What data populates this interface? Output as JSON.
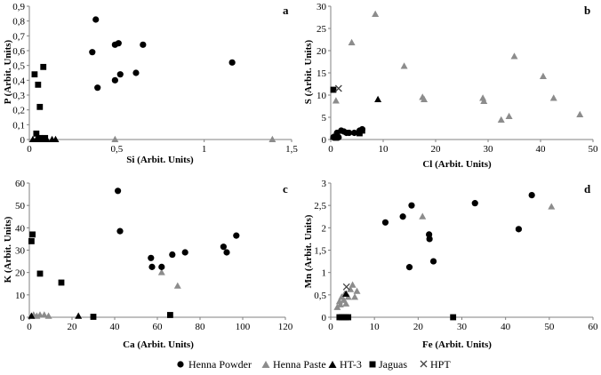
{
  "chart_data": [
    {
      "id": "a",
      "type": "scatter",
      "panel_label": "a",
      "xlabel": "Si (Arbit. Units)",
      "ylabel": "P (Arbit. Units)",
      "xlim": [
        0,
        1.5
      ],
      "ylim": [
        0,
        0.9
      ],
      "xticks": [
        0,
        0.5,
        1,
        1.5
      ],
      "xtick_labels": [
        "0",
        "0,5",
        "1",
        "1,5"
      ],
      "yticks": [
        0,
        0.1,
        0.2,
        0.3,
        0.4,
        0.5,
        0.6,
        0.7,
        0.8,
        0.9
      ],
      "ytick_labels": [
        "0",
        "0,1",
        "0,2",
        "0,3",
        "0,4",
        "0,5",
        "0,6",
        "0,7",
        "0,8",
        "0,9"
      ],
      "series": [
        {
          "name": "Henna Powder",
          "points": [
            [
              0.36,
              0.59
            ],
            [
              0.38,
              0.81
            ],
            [
              0.39,
              0.35
            ],
            [
              0.49,
              0.4
            ],
            [
              0.49,
              0.64
            ],
            [
              0.51,
              0.65
            ],
            [
              0.52,
              0.44
            ],
            [
              0.61,
              0.45
            ],
            [
              0.65,
              0.64
            ],
            [
              1.16,
              0.52
            ]
          ]
        },
        {
          "name": "Henna Paste",
          "points": [
            [
              0.49,
              0.0
            ],
            [
              1.39,
              0.0
            ]
          ]
        },
        {
          "name": "HT-3",
          "points": [
            [
              0.02,
              0.0
            ],
            [
              0.04,
              0.0
            ],
            [
              0.06,
              0.0
            ],
            [
              0.08,
              0.0
            ],
            [
              0.1,
              0.0
            ],
            [
              0.13,
              0.0
            ],
            [
              0.15,
              0.0
            ]
          ]
        },
        {
          "name": "Jaguas",
          "points": [
            [
              0.03,
              0.44
            ],
            [
              0.05,
              0.37
            ],
            [
              0.06,
              0.22
            ],
            [
              0.04,
              0.04
            ],
            [
              0.06,
              0.01
            ],
            [
              0.08,
              0.49
            ],
            [
              0.09,
              0.01
            ]
          ]
        },
        {
          "name": "HPT",
          "points": []
        }
      ]
    },
    {
      "id": "b",
      "type": "scatter",
      "panel_label": "b",
      "xlabel": "Cl (Arbit. Units)",
      "ylabel": "S (Arbit. Units)",
      "xlim": [
        0,
        50
      ],
      "ylim": [
        0,
        30
      ],
      "xticks": [
        0,
        10,
        20,
        30,
        40,
        50
      ],
      "xtick_labels": [
        "0",
        "10",
        "20",
        "30",
        "40",
        "50"
      ],
      "yticks": [
        0,
        5,
        10,
        15,
        20,
        25,
        30
      ],
      "ytick_labels": [
        "0",
        "5",
        "10",
        "15",
        "20",
        "25",
        "30"
      ],
      "series": [
        {
          "name": "Henna Powder",
          "points": [
            [
              0.5,
              0.5
            ],
            [
              1.2,
              1.5
            ],
            [
              1.5,
              0.5
            ],
            [
              2.0,
              2.0
            ],
            [
              2.5,
              1.8
            ],
            [
              3.0,
              1.5
            ],
            [
              3.5,
              1.5
            ],
            [
              4.5,
              1.5
            ],
            [
              5.5,
              2.0
            ],
            [
              6.0,
              2.3
            ]
          ]
        },
        {
          "name": "Henna Paste",
          "points": [
            [
              1.0,
              8.7
            ],
            [
              4.0,
              21.8
            ],
            [
              8.5,
              28.2
            ],
            [
              14.0,
              16.5
            ],
            [
              17.5,
              9.5
            ],
            [
              17.8,
              9.0
            ],
            [
              29.0,
              9.3
            ],
            [
              29.2,
              8.6
            ],
            [
              32.5,
              4.4
            ],
            [
              34.0,
              5.2
            ],
            [
              35.0,
              18.7
            ],
            [
              40.5,
              14.2
            ],
            [
              42.5,
              9.3
            ],
            [
              47.5,
              5.6
            ]
          ]
        },
        {
          "name": "HT-3",
          "points": [
            [
              9.0,
              9.0
            ],
            [
              0.5,
              0.6
            ]
          ]
        },
        {
          "name": "Jaguas",
          "points": [
            [
              0.5,
              11.2
            ],
            [
              1.0,
              0.4
            ],
            [
              5.5,
              1.4
            ],
            [
              6.0,
              2.0
            ]
          ]
        },
        {
          "name": "HPT",
          "points": [
            [
              1.5,
              11.5
            ]
          ]
        }
      ]
    },
    {
      "id": "c",
      "type": "scatter",
      "panel_label": "c",
      "xlabel": "Ca (Arbit. Units)",
      "ylabel": "K (Arbit. Units)",
      "xlim": [
        0,
        120
      ],
      "ylim": [
        0,
        60
      ],
      "xticks": [
        0,
        20,
        40,
        60,
        80,
        100,
        120
      ],
      "xtick_labels": [
        "0",
        "20",
        "40",
        "60",
        "80",
        "100",
        "120"
      ],
      "yticks": [
        0,
        10,
        20,
        30,
        40,
        50,
        60
      ],
      "ytick_labels": [
        "0",
        "10",
        "20",
        "30",
        "40",
        "50",
        "60"
      ],
      "series": [
        {
          "name": "Henna Powder",
          "points": [
            [
              41.5,
              56.5
            ],
            [
              42.5,
              38.5
            ],
            [
              57.0,
              26.5
            ],
            [
              57.5,
              22.5
            ],
            [
              62.0,
              22.5
            ],
            [
              67.0,
              28.0
            ],
            [
              73.0,
              29.0
            ],
            [
              91.0,
              31.5
            ],
            [
              92.5,
              29.0
            ],
            [
              97.0,
              36.5
            ]
          ]
        },
        {
          "name": "Henna Paste",
          "points": [
            [
              2.0,
              1.0
            ],
            [
              3.5,
              0.5
            ],
            [
              5.0,
              1.0
            ],
            [
              7.0,
              1.0
            ],
            [
              9.0,
              0.5
            ],
            [
              62.0,
              20.0
            ],
            [
              69.5,
              14.0
            ]
          ]
        },
        {
          "name": "HT-3",
          "points": [
            [
              1.0,
              0.5
            ],
            [
              23.0,
              0.5
            ]
          ]
        },
        {
          "name": "Jaguas",
          "points": [
            [
              1.0,
              34.0
            ],
            [
              1.5,
              37.0
            ],
            [
              5.0,
              19.5
            ],
            [
              15.0,
              15.5
            ],
            [
              30.0,
              0.2
            ],
            [
              66.0,
              1.0
            ]
          ]
        },
        {
          "name": "HPT",
          "points": []
        }
      ]
    },
    {
      "id": "d",
      "type": "scatter",
      "panel_label": "d",
      "xlabel": "Fe (Arbit. Units)",
      "ylabel": "Mn (Arbit. Units)",
      "xlim": [
        0,
        60
      ],
      "ylim": [
        0,
        3
      ],
      "xticks": [
        0,
        10,
        20,
        30,
        40,
        50,
        60
      ],
      "xtick_labels": [
        "0",
        "10",
        "20",
        "30",
        "40",
        "50",
        "60"
      ],
      "yticks": [
        0,
        0.5,
        1,
        1.5,
        2,
        2.5,
        3
      ],
      "ytick_labels": [
        "0",
        "0,5",
        "1",
        "1,5",
        "2",
        "2,5",
        "3"
      ],
      "series": [
        {
          "name": "Henna Powder",
          "points": [
            [
              12.5,
              2.12
            ],
            [
              16.5,
              2.25
            ],
            [
              18.0,
              1.12
            ],
            [
              18.5,
              2.5
            ],
            [
              22.5,
              1.85
            ],
            [
              22.6,
              1.75
            ],
            [
              23.5,
              1.25
            ],
            [
              33.0,
              2.55
            ],
            [
              43.0,
              1.97
            ],
            [
              46.0,
              2.73
            ]
          ]
        },
        {
          "name": "Henna Paste",
          "points": [
            [
              1.5,
              0.22
            ],
            [
              2.0,
              0.35
            ],
            [
              2.2,
              0.28
            ],
            [
              2.5,
              0.45
            ],
            [
              3.0,
              0.38
            ],
            [
              3.2,
              0.52
            ],
            [
              3.5,
              0.3
            ],
            [
              4.0,
              0.45
            ],
            [
              4.5,
              0.62
            ],
            [
              5.0,
              0.72
            ],
            [
              5.5,
              0.45
            ],
            [
              6.0,
              0.58
            ],
            [
              21.0,
              2.25
            ],
            [
              50.5,
              2.47
            ]
          ]
        },
        {
          "name": "HT-3",
          "points": [
            [
              3.5,
              0.52
            ]
          ]
        },
        {
          "name": "Jaguas",
          "points": [
            [
              2.0,
              0.0
            ],
            [
              2.5,
              0.0
            ],
            [
              3.0,
              0.0
            ],
            [
              3.5,
              0.0
            ],
            [
              4.0,
              0.0
            ],
            [
              28.0,
              0.0
            ]
          ]
        },
        {
          "name": "HPT",
          "points": [
            [
              3.6,
              0.68
            ]
          ]
        }
      ]
    }
  ],
  "legend": {
    "placement": "bottom",
    "items": [
      {
        "name": "Henna Powder",
        "marker": "circle-icon"
      },
      {
        "name": "Henna Paste",
        "marker": "triangle-icon"
      },
      {
        "name": "HT-3",
        "marker": "triangle-icon"
      },
      {
        "name": "Jaguas",
        "marker": "square-icon"
      },
      {
        "name": "HPT",
        "marker": "cross-icon"
      }
    ]
  },
  "colors": {
    "Henna Powder": "#000000",
    "Henna Paste": "#8c8c8c",
    "HT-3": "#000000",
    "Jaguas": "#000000",
    "HPT": "#444444",
    "axis": "#808080"
  }
}
